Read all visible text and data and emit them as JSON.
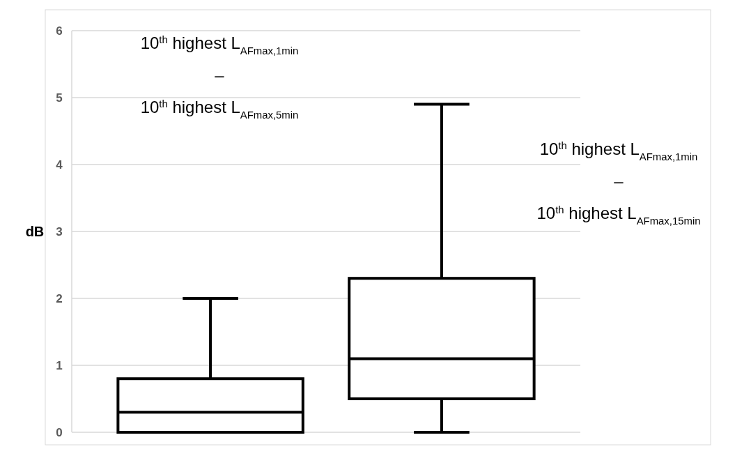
{
  "chart_data": {
    "type": "box",
    "ylabel": "dB",
    "categories": [
      null,
      null
    ],
    "boxes": [
      {
        "low": 0,
        "q1": 0,
        "median": 0.3,
        "q3": 0.8,
        "high": 2
      },
      {
        "low": 0,
        "q1": 0.5,
        "median": 1.1,
        "q3": 2.3,
        "high": 4.9
      }
    ],
    "color": "#000000",
    "ylim": [
      0,
      6
    ],
    "yticks": [
      0,
      1,
      2,
      3,
      4,
      5,
      6
    ],
    "grid": "y",
    "annotations": [
      "10$^{th}$ highest L$_{AFmax,1min}$\n–\n10$^{th}$ highest L$_{AFmax,5min}$",
      "10$^{th}$ highest L$_{AFmax,1min}$\n–\n10$^{th}$ highest L$_{AFmax,15min}$"
    ]
  }
}
